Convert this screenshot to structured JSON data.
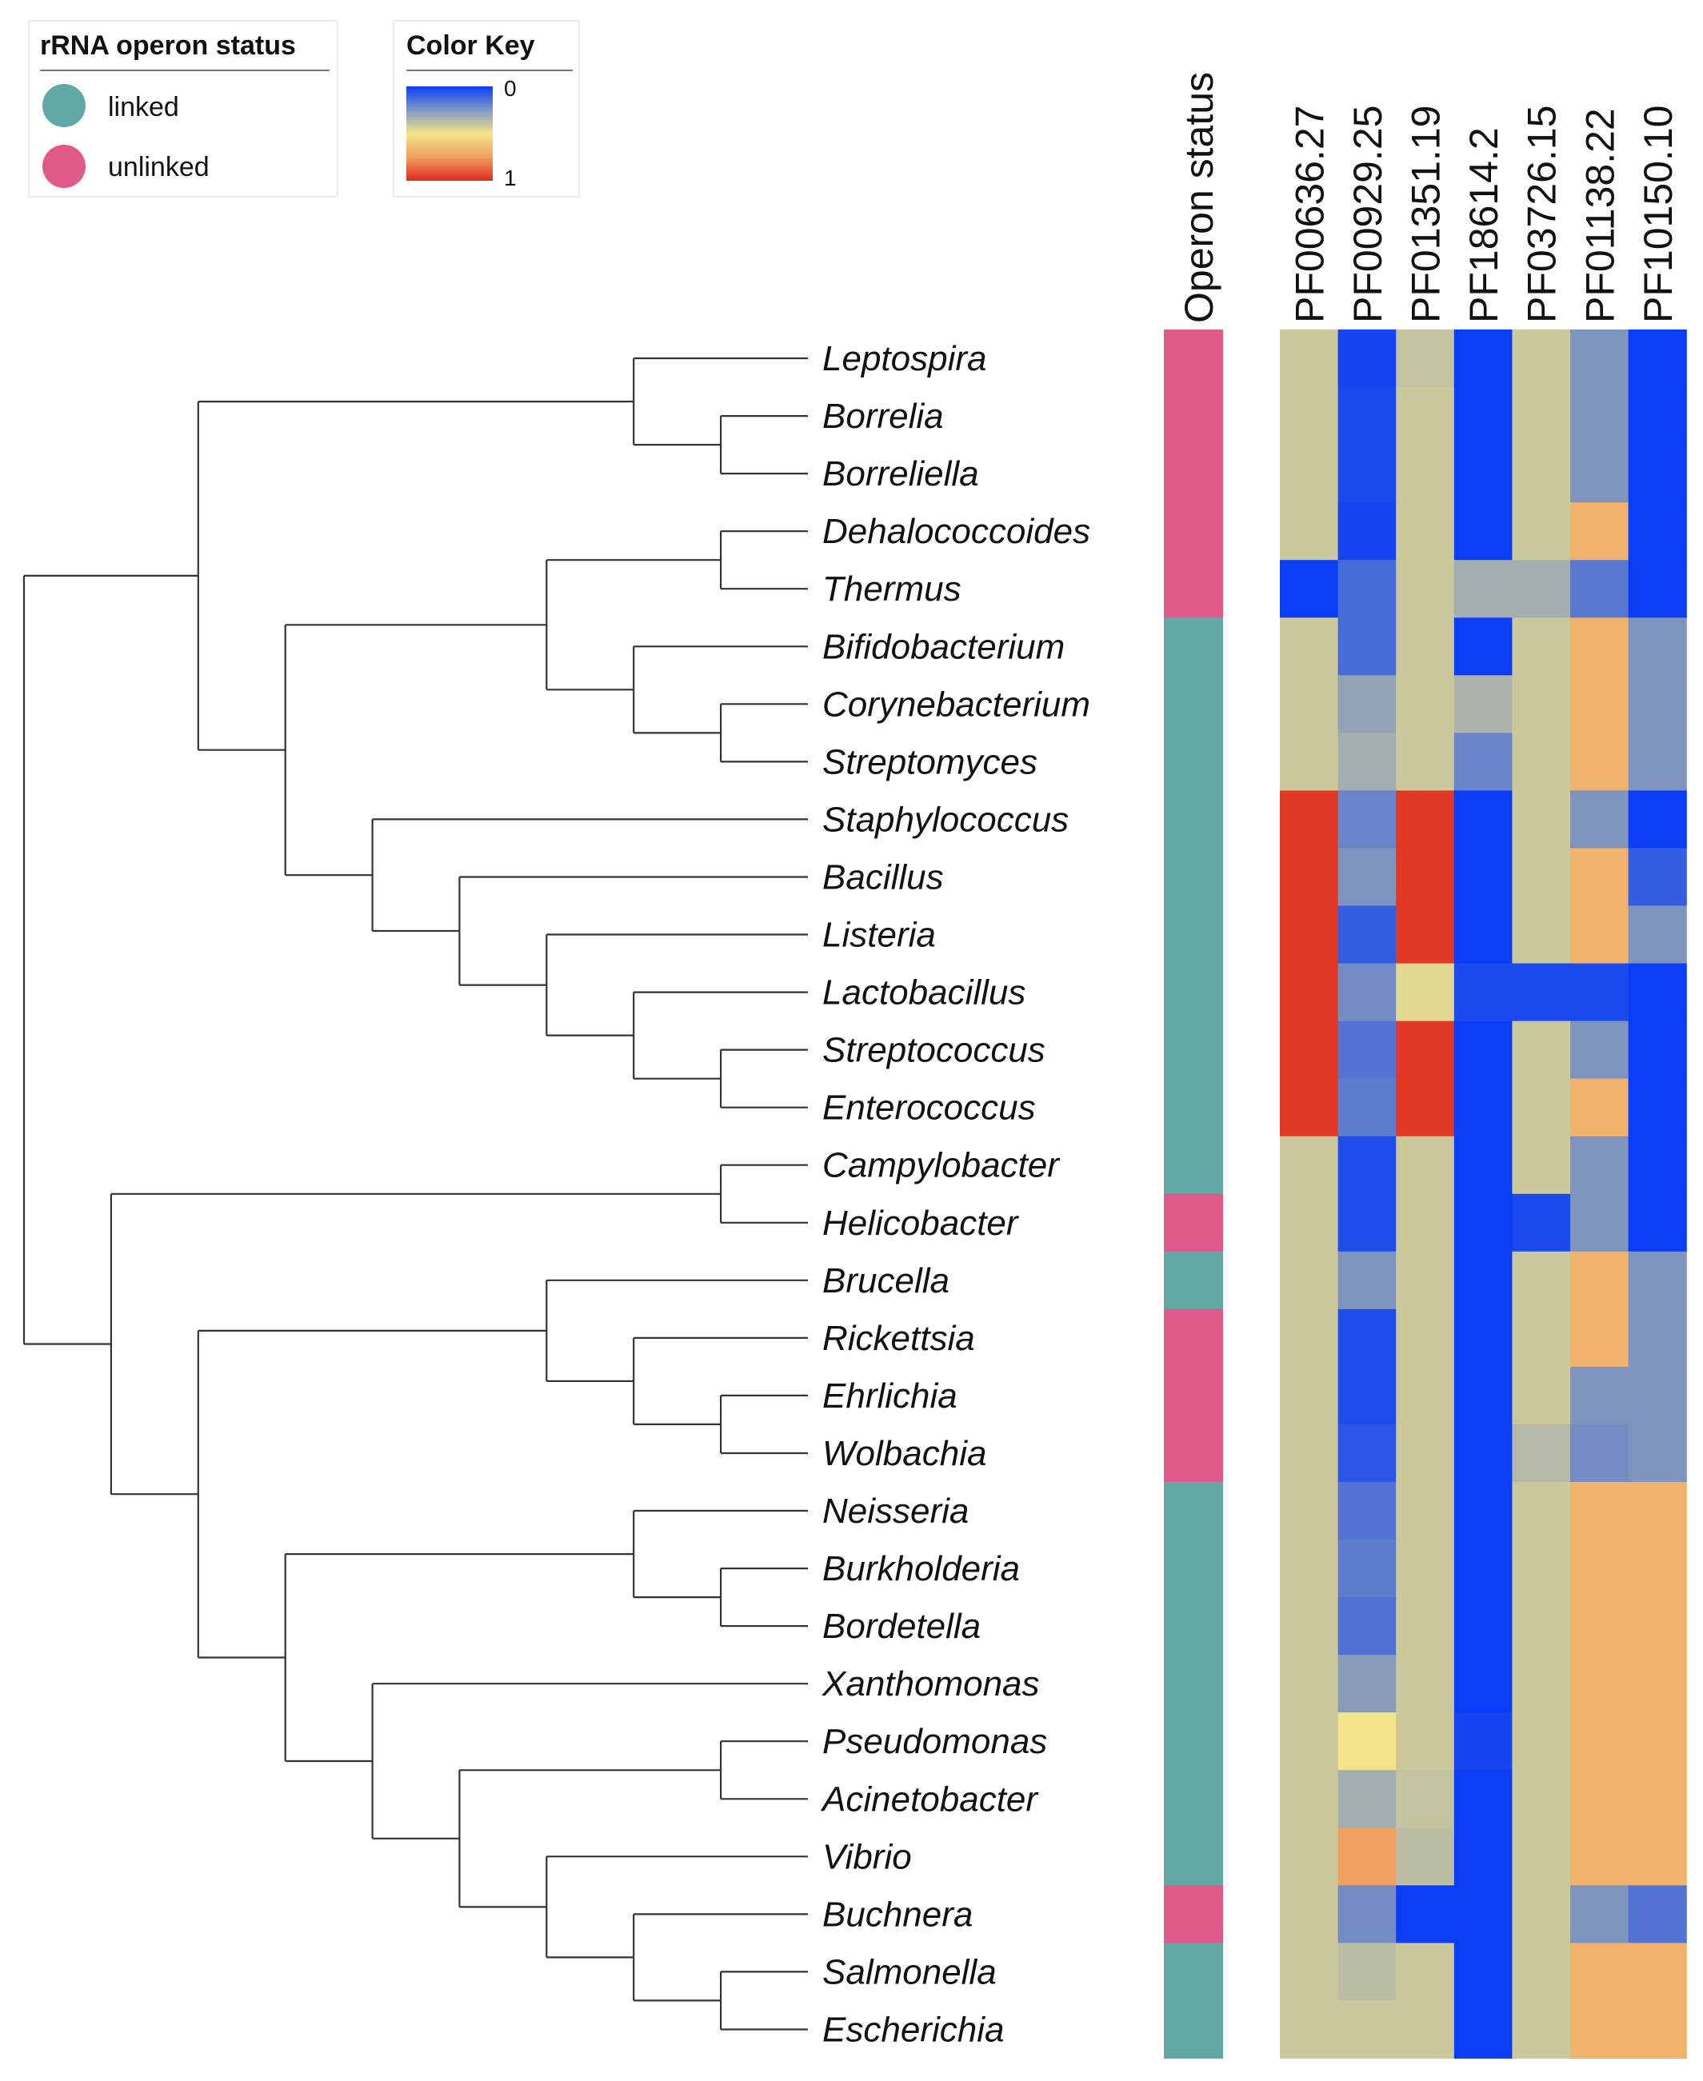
{
  "legend": {
    "title": "rRNA operon status",
    "items": [
      {
        "label": "linked",
        "color": "#62a8a4"
      },
      {
        "label": "unlinked",
        "color": "#e05a8a"
      }
    ]
  },
  "color_key": {
    "title": "Color Key",
    "min_label": "0",
    "max_label": "1"
  },
  "chart_data": {
    "type": "heatmap",
    "title": "",
    "operon_column_label": "Operon status",
    "columns": [
      "PF00636.27",
      "PF00929.25",
      "PF01351.19",
      "PF18614.2",
      "PF03726.15",
      "PF01138.22",
      "PF10150.10"
    ],
    "rows": [
      "Leptospira",
      "Borrelia",
      "Borreliella",
      "Dehalococcoides",
      "Thermus",
      "Bifidobacterium",
      "Corynebacterium",
      "Streptomyces",
      "Staphylococcus",
      "Bacillus",
      "Listeria",
      "Lactobacillus",
      "Streptococcus",
      "Enterococcus",
      "Campylobacter",
      "Helicobacter",
      "Brucella",
      "Rickettsia",
      "Ehrlichia",
      "Wolbachia",
      "Neisseria",
      "Burkholderia",
      "Bordetella",
      "Xanthomonas",
      "Pseudomonas",
      "Acinetobacter",
      "Vibrio",
      "Buchnera",
      "Salmonella",
      "Escherichia"
    ],
    "operon_status": [
      "unlinked",
      "unlinked",
      "unlinked",
      "unlinked",
      "unlinked",
      "linked",
      "linked",
      "linked",
      "linked",
      "linked",
      "linked",
      "linked",
      "linked",
      "linked",
      "linked",
      "unlinked",
      "linked",
      "unlinked",
      "unlinked",
      "unlinked",
      "linked",
      "linked",
      "linked",
      "linked",
      "linked",
      "linked",
      "linked",
      "unlinked",
      "linked",
      "linked"
    ],
    "values": [
      [
        0.4,
        0.02,
        0.38,
        0.0,
        0.4,
        0.22,
        0.0
      ],
      [
        0.4,
        0.03,
        0.4,
        0.0,
        0.4,
        0.22,
        0.0
      ],
      [
        0.4,
        0.03,
        0.4,
        0.0,
        0.4,
        0.22,
        0.0
      ],
      [
        0.4,
        0.02,
        0.4,
        0.0,
        0.4,
        0.68,
        0.0
      ],
      [
        0.0,
        0.12,
        0.4,
        0.3,
        0.3,
        0.15,
        0.0
      ],
      [
        0.4,
        0.12,
        0.4,
        0.0,
        0.4,
        0.68,
        0.22
      ],
      [
        0.4,
        0.26,
        0.4,
        0.32,
        0.4,
        0.68,
        0.22
      ],
      [
        0.4,
        0.3,
        0.4,
        0.18,
        0.4,
        0.68,
        0.22
      ],
      [
        0.97,
        0.18,
        0.97,
        0.0,
        0.4,
        0.22,
        0.0
      ],
      [
        0.97,
        0.22,
        0.97,
        0.0,
        0.4,
        0.68,
        0.08
      ],
      [
        0.97,
        0.08,
        0.97,
        0.0,
        0.4,
        0.68,
        0.22
      ],
      [
        0.97,
        0.2,
        0.46,
        0.03,
        0.03,
        0.03,
        0.0
      ],
      [
        0.97,
        0.14,
        0.97,
        0.0,
        0.4,
        0.22,
        0.0
      ],
      [
        0.97,
        0.16,
        0.97,
        0.0,
        0.4,
        0.68,
        0.0
      ],
      [
        0.4,
        0.04,
        0.4,
        0.0,
        0.4,
        0.22,
        0.0
      ],
      [
        0.4,
        0.04,
        0.4,
        0.0,
        0.03,
        0.22,
        0.0
      ],
      [
        0.4,
        0.22,
        0.4,
        0.0,
        0.4,
        0.68,
        0.22
      ],
      [
        0.4,
        0.04,
        0.4,
        0.0,
        0.4,
        0.68,
        0.22
      ],
      [
        0.4,
        0.04,
        0.4,
        0.0,
        0.4,
        0.22,
        0.22
      ],
      [
        0.4,
        0.06,
        0.4,
        0.0,
        0.34,
        0.2,
        0.22
      ],
      [
        0.4,
        0.14,
        0.4,
        0.0,
        0.4,
        0.68,
        0.68
      ],
      [
        0.4,
        0.16,
        0.4,
        0.0,
        0.4,
        0.68,
        0.68
      ],
      [
        0.4,
        0.13,
        0.4,
        0.0,
        0.4,
        0.68,
        0.68
      ],
      [
        0.4,
        0.24,
        0.4,
        0.0,
        0.4,
        0.68,
        0.68
      ],
      [
        0.4,
        0.5,
        0.4,
        0.02,
        0.4,
        0.68,
        0.68
      ],
      [
        0.4,
        0.3,
        0.38,
        0.0,
        0.4,
        0.68,
        0.68
      ],
      [
        0.4,
        0.75,
        0.36,
        0.0,
        0.4,
        0.68,
        0.68
      ],
      [
        0.4,
        0.2,
        0.0,
        0.0,
        0.4,
        0.22,
        0.14
      ],
      [
        0.4,
        0.36,
        0.4,
        0.0,
        0.4,
        0.68,
        0.68
      ],
      [
        0.4,
        0.4,
        0.4,
        0.0,
        0.4,
        0.68,
        0.68
      ]
    ],
    "tree": [
      [
        [
          [
            0,
            [
              1,
              2
            ]
          ],
          [
            [
              [
                3,
                4
              ],
              [
                5,
                [
                  6,
                  7
                ]
              ]
            ],
            [
              8,
              [
                9,
                [
                  10,
                  [
                    11,
                    [
                      12,
                      13
                    ]
                  ]
                ]
              ]
            ]
          ]
        ]
      ],
      [
        [
          14,
          15
        ],
        [
          [
            16,
            [
              17,
              [
                18,
                19
              ]
            ]
          ],
          [
            [
              20,
              [
                21,
                22
              ]
            ],
            [
              23,
              [
                [
                  24,
                  25
                ],
                [
                  26,
                  [
                    27,
                    [
                      28,
                      29
                    ]
                  ]
                ]
              ]
            ]
          ]
        ]
      ]
    ],
    "colorscale": [
      "#0a3df5",
      "#8ea0b8",
      "#f4e48a",
      "#f0a060",
      "#e02a1e"
    ],
    "range": [
      0,
      1
    ]
  }
}
